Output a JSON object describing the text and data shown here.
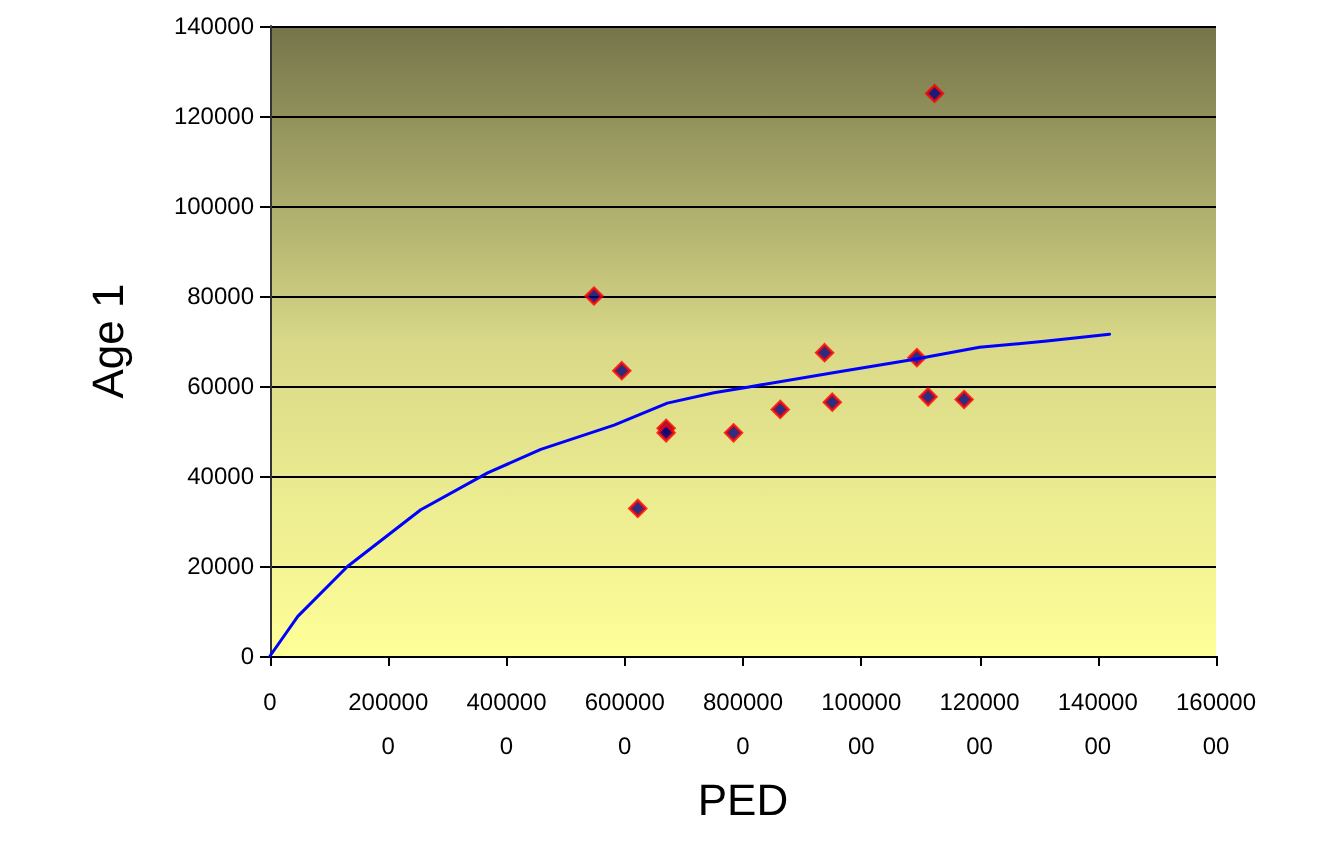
{
  "chart_data": {
    "type": "scatter",
    "xlabel": "PED",
    "ylabel": "Age 1",
    "xlim": [
      0,
      16000000
    ],
    "xticks": [
      0,
      2000000,
      4000000,
      6000000,
      8000000,
      10000000,
      12000000,
      14000000,
      16000000
    ],
    "ylim": [
      0,
      140000
    ],
    "yticks": [
      0,
      20000,
      40000,
      60000,
      80000,
      100000,
      120000,
      140000
    ],
    "grid": "y",
    "series": [
      {
        "color": "#000080",
        "marker": "diamond",
        "x": [
          5480000,
          5950000,
          6700000,
          6700000,
          6220000,
          7840000,
          8630000,
          9380000,
          9510000,
          10940000,
          11130000,
          11240000,
          11740000
        ],
        "values": [
          80000,
          63400,
          50600,
          49600,
          32800,
          49600,
          54800,
          67400,
          56400,
          66300,
          57600,
          125000,
          57000
        ]
      },
      {
        "type": "line",
        "color": "#0000ff",
        "marker": "none",
        "line_style": "solid",
        "x": [
          0,
          470000,
          1310000,
          2550000,
          3680000,
          4580000,
          5820000,
          6720000,
          7510000,
          8100000,
          9650000,
          10880000,
          12000000,
          13140000,
          14200000
        ],
        "values": [
          0,
          8800,
          19900,
          32500,
          40700,
          45900,
          51300,
          56200,
          58500,
          59800,
          63200,
          65900,
          68600,
          70000,
          71500
        ]
      }
    ]
  }
}
